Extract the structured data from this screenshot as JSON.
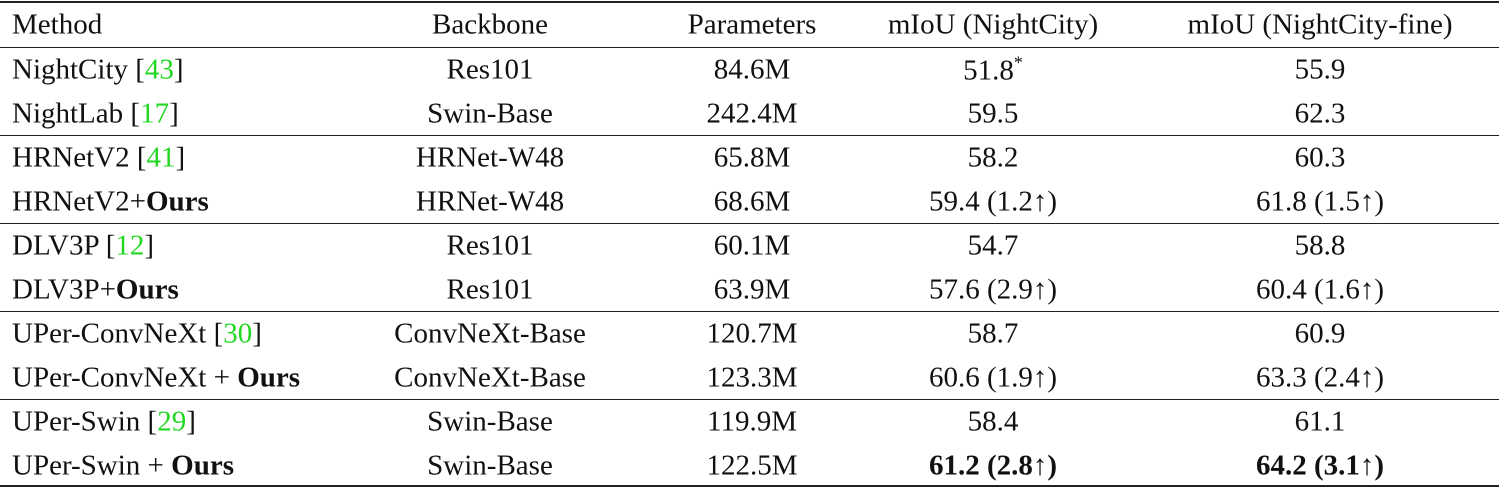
{
  "header": {
    "method": "Method",
    "backbone": "Backbone",
    "parameters": "Parameters",
    "miou_nc": "mIoU (NightCity)",
    "miou_ncf": "mIoU (NightCity-fine)"
  },
  "colors": {
    "citation": "#22d822"
  },
  "rows": [
    {
      "method": "NightCity [",
      "cite": "43",
      "method_end": "]",
      "ours": "",
      "backbone": "Res101",
      "params": "84.6M",
      "nc": "51.8",
      "nc_mark": "*",
      "ncf": "55.9"
    },
    {
      "method": "NightLab [",
      "cite": "17",
      "method_end": "]",
      "ours": "",
      "backbone": "Swin-Base",
      "params": "242.4M",
      "nc": "59.5",
      "ncf": "62.3"
    },
    {
      "method": "HRNetV2 [",
      "cite": "41",
      "method_end": "]",
      "ours": "",
      "backbone": "HRNet-W48",
      "params": "65.8M",
      "nc": "58.2",
      "ncf": "60.3"
    },
    {
      "method": "HRNetV2+",
      "ours": "Ours",
      "backbone": "HRNet-W48",
      "params": "68.6M",
      "nc": "59.4 (1.2↑)",
      "ncf": "61.8 (1.5↑)"
    },
    {
      "method": "DLV3P [",
      "cite": "12",
      "method_end": "]",
      "ours": "",
      "backbone": "Res101",
      "params": "60.1M",
      "nc": "54.7",
      "ncf": "58.8"
    },
    {
      "method": "DLV3P+",
      "ours": "Ours",
      "backbone": "Res101",
      "params": "63.9M",
      "nc": "57.6 (2.9↑)",
      "ncf": "60.4 (1.6↑)"
    },
    {
      "method": "UPer-ConvNeXt [",
      "cite": "30",
      "method_end": "]",
      "ours": "",
      "backbone": "ConvNeXt-Base",
      "params": "120.7M",
      "nc": "58.7",
      "ncf": "60.9"
    },
    {
      "method": "UPer-ConvNeXt + ",
      "ours": "Ours",
      "backbone": "ConvNeXt-Base",
      "params": "123.3M",
      "nc": "60.6 (1.9↑)",
      "ncf": "63.3 (2.4↑)"
    },
    {
      "method": "UPer-Swin [",
      "cite": "29",
      "method_end": "]",
      "ours": "",
      "backbone": "Swin-Base",
      "params": "119.9M",
      "nc": "58.4",
      "ncf": "61.1"
    },
    {
      "method": "UPer-Swin + ",
      "ours": "Ours",
      "backbone": "Swin-Base",
      "params": "122.5M",
      "nc": "61.2 (2.8↑)",
      "ncf": "64.2 (3.1↑)",
      "bold_results": true
    }
  ]
}
